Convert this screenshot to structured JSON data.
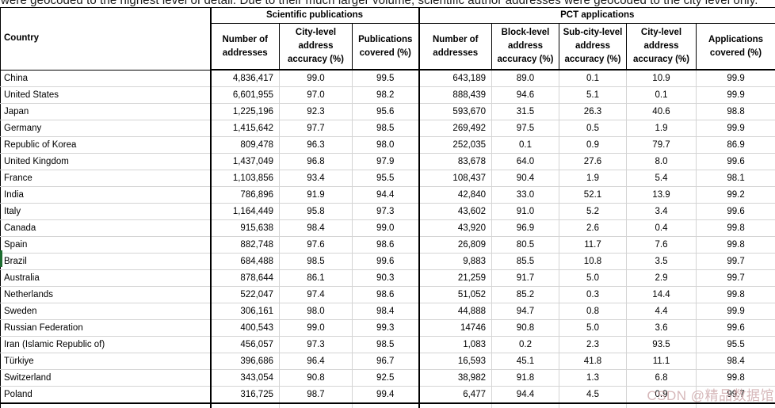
{
  "intro_text": "were geocoded to the highest level of detail. Due to their much larger volume, scientific author addresses were geocoded to the city level only.",
  "watermark_text": "CSDN @精品数据馆",
  "colors": {
    "table_border": "#000000",
    "grid_line": "#d4d4d4",
    "row_marker_green": "#1c6b2e",
    "watermark_pink": "#c99fa2",
    "background": "#ffffff"
  },
  "table": {
    "group_headers": {
      "scientific": "Scientific publications",
      "pct": "PCT applications"
    },
    "country_header": "Country",
    "sci_columns": [
      "Number of addresses",
      "City-level address accuracy (%)",
      "Publications covered (%)"
    ],
    "pct_columns": [
      "Number of addresses",
      "Block-level address accuracy (%)",
      "Sub-city-level address accuracy (%)",
      "City-level address accuracy (%)",
      "Applications covered (%)"
    ],
    "rows": [
      {
        "country": "China",
        "values": [
          "4,836,417",
          "99.0",
          "99.5",
          "643,189",
          "89.0",
          "0.1",
          "10.9",
          "99.9"
        ]
      },
      {
        "country": "United States",
        "values": [
          "6,601,955",
          "97.0",
          "98.2",
          "888,439",
          "94.6",
          "5.1",
          "0.1",
          "99.9"
        ]
      },
      {
        "country": "Japan",
        "values": [
          "1,225,196",
          "92.3",
          "95.6",
          "593,670",
          "31.5",
          "26.3",
          "40.6",
          "98.8"
        ]
      },
      {
        "country": "Germany",
        "values": [
          "1,415,642",
          "97.7",
          "98.5",
          "269,492",
          "97.5",
          "0.5",
          "1.9",
          "99.9"
        ]
      },
      {
        "country": "Republic of Korea",
        "values": [
          "809,478",
          "96.3",
          "98.0",
          "252,035",
          "0.1",
          "0.9",
          "79.7",
          "86.9"
        ]
      },
      {
        "country": "United Kingdom",
        "values": [
          "1,437,049",
          "96.8",
          "97.9",
          "83,678",
          "64.0",
          "27.6",
          "8.0",
          "99.6"
        ]
      },
      {
        "country": "France",
        "values": [
          "1,103,856",
          "93.4",
          "95.5",
          "108,437",
          "90.4",
          "1.9",
          "5.4",
          "98.1"
        ]
      },
      {
        "country": "India",
        "values": [
          "786,896",
          "91.9",
          "94.4",
          "42,840",
          "33.0",
          "52.1",
          "13.9",
          "99.2"
        ]
      },
      {
        "country": "Italy",
        "values": [
          "1,164,449",
          "95.8",
          "97.3",
          "43,602",
          "91.0",
          "5.2",
          "3.4",
          "99.6"
        ]
      },
      {
        "country": "Canada",
        "values": [
          "915,638",
          "98.4",
          "99.0",
          "43,920",
          "96.9",
          "2.6",
          "0.4",
          "99.8"
        ]
      },
      {
        "country": "Spain",
        "values": [
          "882,748",
          "97.6",
          "98.6",
          "26,809",
          "80.5",
          "11.7",
          "7.6",
          "99.8"
        ]
      },
      {
        "country": "Brazil",
        "values": [
          "684,488",
          "98.5",
          "99.6",
          "9,883",
          "85.5",
          "10.8",
          "3.5",
          "99.7"
        ]
      },
      {
        "country": "Australia",
        "values": [
          "878,644",
          "86.1",
          "90.3",
          "21,259",
          "91.7",
          "5.0",
          "2.9",
          "99.7"
        ]
      },
      {
        "country": "Netherlands",
        "values": [
          "522,047",
          "97.4",
          "98.6",
          "51,052",
          "85.2",
          "0.3",
          "14.4",
          "99.8"
        ]
      },
      {
        "country": "Sweden",
        "values": [
          "306,161",
          "98.0",
          "98.4",
          "44,888",
          "94.7",
          "0.8",
          "4.4",
          "99.9"
        ]
      },
      {
        "country": "Russian Federation",
        "values": [
          "400,543",
          "99.0",
          "99.3",
          "14746",
          "90.8",
          "5.0",
          "3.6",
          "99.6"
        ]
      },
      {
        "country": "Iran (Islamic Republic of)",
        "values": [
          "456,057",
          "97.3",
          "98.5",
          "1,083",
          "0.2",
          "2.3",
          "93.5",
          "95.5"
        ]
      },
      {
        "country": "Türkiye",
        "values": [
          "396,686",
          "96.4",
          "96.7",
          "16,593",
          "45.1",
          "41.8",
          "11.1",
          "98.4"
        ]
      },
      {
        "country": "Switzerland",
        "values": [
          "343,054",
          "90.8",
          "92.5",
          "38,982",
          "91.8",
          "1.3",
          "6.8",
          "99.8"
        ]
      },
      {
        "country": "Poland",
        "values": [
          "316,725",
          "98.7",
          "99.4",
          "6,477",
          "94.4",
          "4.5",
          "0.9",
          "99.7"
        ]
      }
    ]
  }
}
